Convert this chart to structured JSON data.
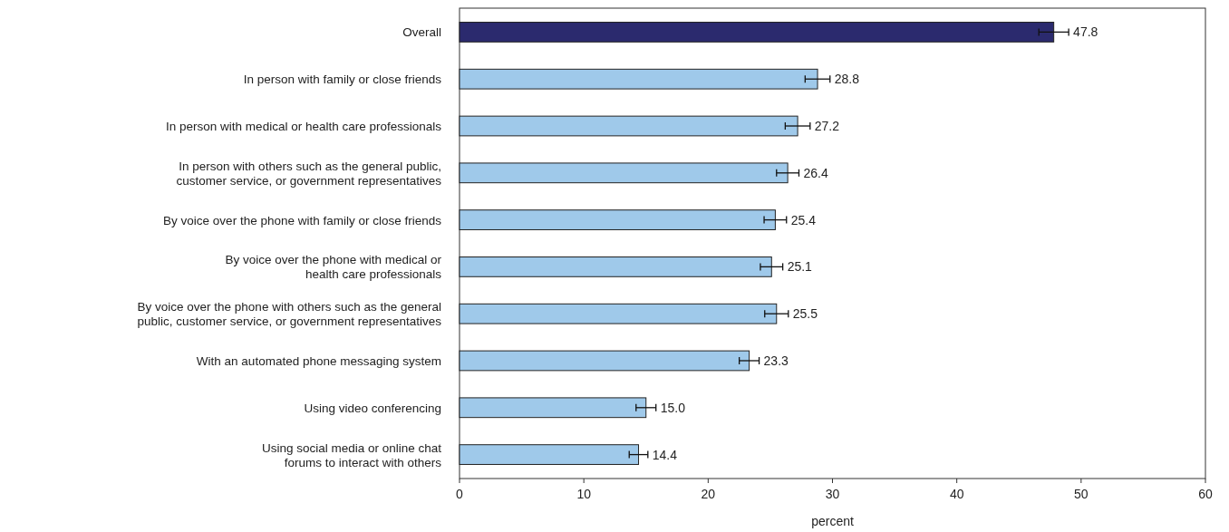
{
  "chart_data": {
    "type": "bar",
    "orientation": "horizontal",
    "xlabel": "percent",
    "categories": [
      "Overall",
      "In person with family or close friends",
      "In person with medical or health care professionals",
      "In person with others such as the general public,\ncustomer service, or government representatives",
      "By voice over the phone with family or close friends",
      "By voice over the phone with medical or\nhealth care professionals",
      "By voice over the phone with others such as the general\npublic, customer service, or government representatives",
      "With an automated phone messaging system",
      "Using video conferencing",
      "Using social media or online chat\nforums to interact with others"
    ],
    "values": [
      47.8,
      28.8,
      27.2,
      26.4,
      25.4,
      25.1,
      25.5,
      23.3,
      15.0,
      14.4
    ],
    "colors": [
      "#2b2a6e",
      "#9fc9ea",
      "#9fc9ea",
      "#9fc9ea",
      "#9fc9ea",
      "#9fc9ea",
      "#9fc9ea",
      "#9fc9ea",
      "#9fc9ea",
      "#9fc9ea"
    ],
    "errors": [
      1.2,
      1.0,
      1.0,
      0.9,
      0.9,
      0.9,
      0.95,
      0.8,
      0.8,
      0.75
    ],
    "value_labels": [
      "47.8",
      "28.8",
      "27.2",
      "26.4",
      "25.4",
      "25.1",
      "25.5",
      "23.3",
      "15.0",
      "14.4"
    ],
    "xlim": [
      0,
      60
    ],
    "xticks": [
      0,
      10,
      20,
      30,
      40,
      50,
      60
    ],
    "grid": false
  }
}
